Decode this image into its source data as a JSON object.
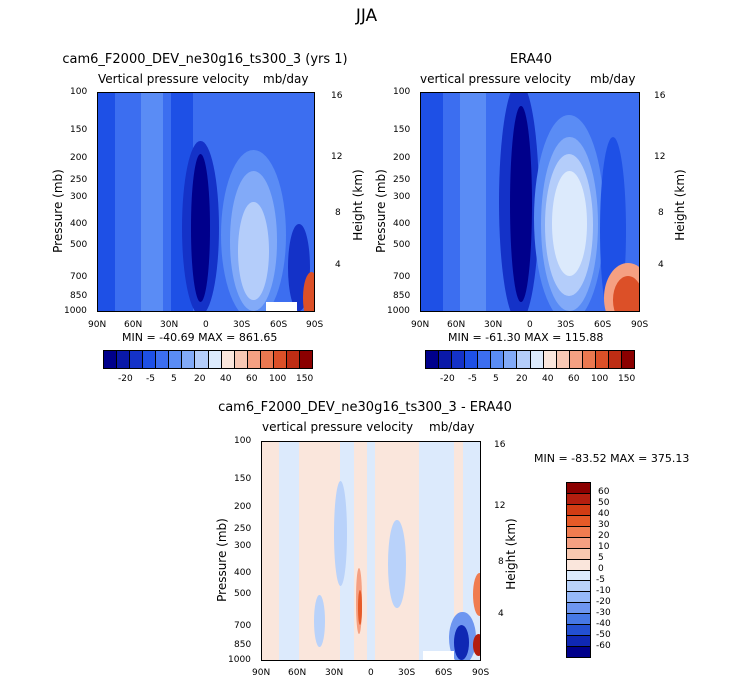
{
  "title": "JJA",
  "chart_data": [
    {
      "type": "heatmap",
      "title": "cam6_F2000_DEV_ne30g16_ts300_3 (yrs 1)",
      "subtitle_left": "Vertical pressure velocity",
      "units": "mb/day",
      "ylabel": "Pressure (mb)",
      "ylabel_right": "Height (km)",
      "x_ticks": [
        "90N",
        "60N",
        "30N",
        "0",
        "30S",
        "60S",
        "90S"
      ],
      "y_ticks": [
        "100",
        "150",
        "200",
        "250",
        "300",
        "400",
        "500",
        "700",
        "850",
        "1000"
      ],
      "y_right_ticks": [
        "16",
        "12",
        "8",
        "4"
      ],
      "stats": "MIN = -40.69   MAX = 861.65",
      "min": -40.69,
      "max": 861.65,
      "colorbar_labels": [
        "-20",
        "-5",
        "5",
        "20",
        "40",
        "60",
        "100",
        "150"
      ]
    },
    {
      "type": "heatmap",
      "title": "ERA40",
      "subtitle_left": "vertical pressure velocity",
      "units": "mb/day",
      "ylabel": "Pressure (mb)",
      "ylabel_right": "Height (km)",
      "x_ticks": [
        "90N",
        "60N",
        "30N",
        "0",
        "30S",
        "60S",
        "90S"
      ],
      "y_ticks": [
        "100",
        "150",
        "200",
        "250",
        "300",
        "400",
        "500",
        "700",
        "850",
        "1000"
      ],
      "y_right_ticks": [
        "16",
        "12",
        "8",
        "4"
      ],
      "stats": "MIN = -61.30   MAX = 115.88",
      "min": -61.3,
      "max": 115.88,
      "colorbar_labels": [
        "-20",
        "-5",
        "5",
        "20",
        "40",
        "60",
        "100",
        "150"
      ]
    },
    {
      "type": "heatmap",
      "title": "cam6_F2000_DEV_ne30g16_ts300_3 - ERA40",
      "subtitle_left": "vertical pressure velocity",
      "units": "mb/day",
      "ylabel": "Pressure (mb)",
      "ylabel_right": "Height (km)",
      "x_ticks": [
        "90N",
        "60N",
        "30N",
        "0",
        "30S",
        "60S",
        "90S"
      ],
      "y_ticks": [
        "100",
        "150",
        "200",
        "250",
        "300",
        "400",
        "500",
        "700",
        "850",
        "1000"
      ],
      "y_right_ticks": [
        "16",
        "12",
        "8",
        "4"
      ],
      "stats": "MIN = -83.52   MAX = 375.13",
      "min": -83.52,
      "max": 375.13,
      "colorbar_labels": [
        "60",
        "50",
        "40",
        "30",
        "20",
        "10",
        "5",
        "0",
        "-5",
        "-10",
        "-20",
        "-30",
        "-40",
        "-50",
        "-60"
      ]
    }
  ],
  "colors": {
    "abs_scale": [
      "#00008b",
      "#0a19a8",
      "#1432c8",
      "#1e50e6",
      "#3c6ef0",
      "#5a8cf5",
      "#82aaf8",
      "#b4cdfa",
      "#dceafc",
      "#fae6dc",
      "#f8c8b4",
      "#f5a082",
      "#eb7850",
      "#dc5028",
      "#be2d14",
      "#8b0000"
    ],
    "diff_scale": [
      "#8b0000",
      "#b41e0f",
      "#d23c14",
      "#e65a28",
      "#f07c50",
      "#f5a082",
      "#f8c8b0",
      "#fae6dc",
      "#dceafc",
      "#b9d2fa",
      "#96b9f8",
      "#6e96f0",
      "#4678e6",
      "#2350d2",
      "#0f28b4",
      "#00008b"
    ]
  }
}
